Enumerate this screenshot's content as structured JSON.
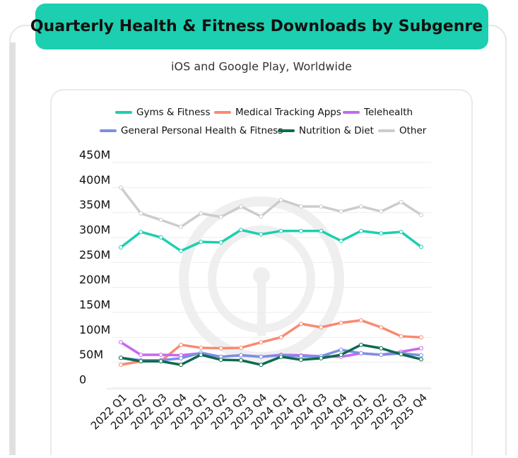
{
  "chart_data": {
    "type": "line",
    "title": "Quarterly Health & Fitness Downloads by Subgenre",
    "subtitle": "iOS and Google Play, Worldwide",
    "categories": [
      "2022 Q1",
      "2022 Q2",
      "2022 Q3",
      "2022 Q4",
      "2023 Q1",
      "2023 Q2",
      "2023 Q3",
      "2023 Q4",
      "2024 Q1",
      "2024 Q2",
      "2024 Q3",
      "2024 Q4",
      "2025 Q1",
      "2025 Q2",
      "2025 Q3",
      "2025 Q4"
    ],
    "series": [
      {
        "name": "Gyms & Fitness",
        "color": "#1ccfb0",
        "values": [
          266000000,
          297000000,
          286000000,
          259000000,
          277000000,
          276000000,
          301000000,
          292000000,
          299000000,
          299000000,
          299000000,
          279000000,
          299000000,
          294000000,
          297000000,
          267000000
        ]
      },
      {
        "name": "Medical Tracking Apps",
        "color": "#f98a72",
        "values": [
          31000000,
          38000000,
          38000000,
          71000000,
          65000000,
          64000000,
          65000000,
          76000000,
          86000000,
          113000000,
          106000000,
          115000000,
          120000000,
          106000000,
          88000000,
          86000000
        ]
      },
      {
        "name": "Telehealth",
        "color": "#c867f0",
        "values": [
          76000000,
          51000000,
          51000000,
          50000000,
          54000000,
          47000000,
          50000000,
          47000000,
          51000000,
          50000000,
          48000000,
          47000000,
          54000000,
          51000000,
          57000000,
          64000000
        ]
      },
      {
        "name": "General Personal Health & Fitness",
        "color": "#7b8fe6",
        "values": [
          45000000,
          40000000,
          40000000,
          44000000,
          55000000,
          47000000,
          50000000,
          47000000,
          50000000,
          48000000,
          48000000,
          61000000,
          54000000,
          51000000,
          54000000,
          50000000
        ]
      },
      {
        "name": "Nutrition & Diet",
        "color": "#0c6b4f",
        "values": [
          45000000,
          38000000,
          38000000,
          31000000,
          51000000,
          41000000,
          40000000,
          31000000,
          47000000,
          41000000,
          44000000,
          51000000,
          71000000,
          64000000,
          52000000,
          42000000
        ]
      },
      {
        "name": "Other",
        "color": "#cccccc",
        "values": [
          386000000,
          334000000,
          321000000,
          307000000,
          334000000,
          327000000,
          348000000,
          328000000,
          361000000,
          348000000,
          348000000,
          338000000,
          348000000,
          338000000,
          357000000,
          331000000
        ]
      }
    ],
    "ylim": [
      0,
      450000000
    ],
    "yticks": [
      0,
      {
        "value": 50000000,
        "label": "50M"
      },
      {
        "value": 100000000,
        "label": "100M"
      },
      {
        "value": 150000000,
        "label": "150M"
      },
      {
        "value": 200000000,
        "label": "200M"
      },
      {
        "value": 250000000,
        "label": "250M"
      },
      {
        "value": 300000000,
        "label": "300M"
      },
      {
        "value": 350000000,
        "label": "350M"
      },
      {
        "value": 400000000,
        "label": "400M"
      },
      {
        "value": 450000000,
        "label": "450M"
      }
    ],
    "grid": true
  }
}
